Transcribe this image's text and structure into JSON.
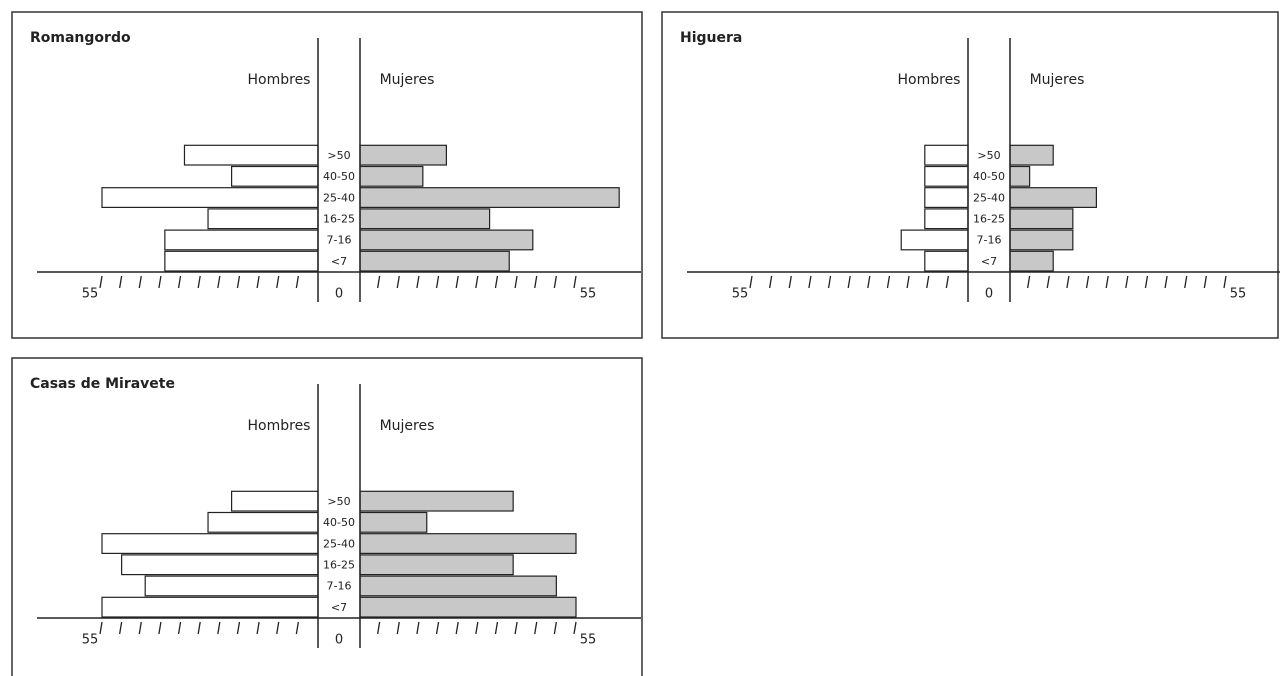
{
  "chart_data": [
    {
      "type": "pyramid",
      "title": "Romangordo",
      "categories": [
        "<7",
        "7-16",
        "16-25",
        "25-40",
        "40-50",
        ">50"
      ],
      "series": [
        {
          "name": "Hombres",
          "color": "#ffffff",
          "values": [
            39,
            39,
            28,
            55,
            22,
            34
          ]
        },
        {
          "name": "Mujeres",
          "color": "#c8c8c8",
          "values": [
            38,
            44,
            33,
            66,
            16,
            22
          ]
        }
      ],
      "xlim": [
        0,
        55
      ],
      "xticks": [
        0,
        55
      ],
      "minor_xticks": [
        5,
        10,
        15,
        20,
        25,
        30,
        35,
        40,
        45,
        50
      ]
    },
    {
      "type": "pyramid",
      "title": "Higuera",
      "categories": [
        "<7",
        "7-16",
        "16-25",
        "25-40",
        "40-50",
        ">50"
      ],
      "series": [
        {
          "name": "Hombres",
          "color": "#ffffff",
          "values": [
            11,
            17,
            11,
            11,
            11,
            11
          ]
        },
        {
          "name": "Mujeres",
          "color": "#c8c8c8",
          "values": [
            11,
            16,
            16,
            22,
            5,
            11
          ]
        }
      ],
      "xlim": [
        0,
        55
      ],
      "xticks": [
        0,
        55
      ],
      "minor_xticks": [
        5,
        10,
        15,
        20,
        25,
        30,
        35,
        40,
        45,
        50
      ]
    },
    {
      "type": "pyramid",
      "title": "Casas de Miravete",
      "categories": [
        "<7",
        "7-16",
        "16-25",
        "25-40",
        "40-50",
        ">50"
      ],
      "series": [
        {
          "name": "Hombres",
          "color": "#ffffff",
          "values": [
            55,
            44,
            50,
            55,
            28,
            22
          ]
        },
        {
          "name": "Mujeres",
          "color": "#c8c8c8",
          "values": [
            55,
            50,
            39,
            55,
            17,
            39
          ]
        }
      ],
      "xlim": [
        0,
        55
      ],
      "xticks": [
        0,
        55
      ],
      "minor_xticks": [
        5,
        10,
        15,
        20,
        25,
        30,
        35,
        40,
        45,
        50
      ]
    }
  ]
}
